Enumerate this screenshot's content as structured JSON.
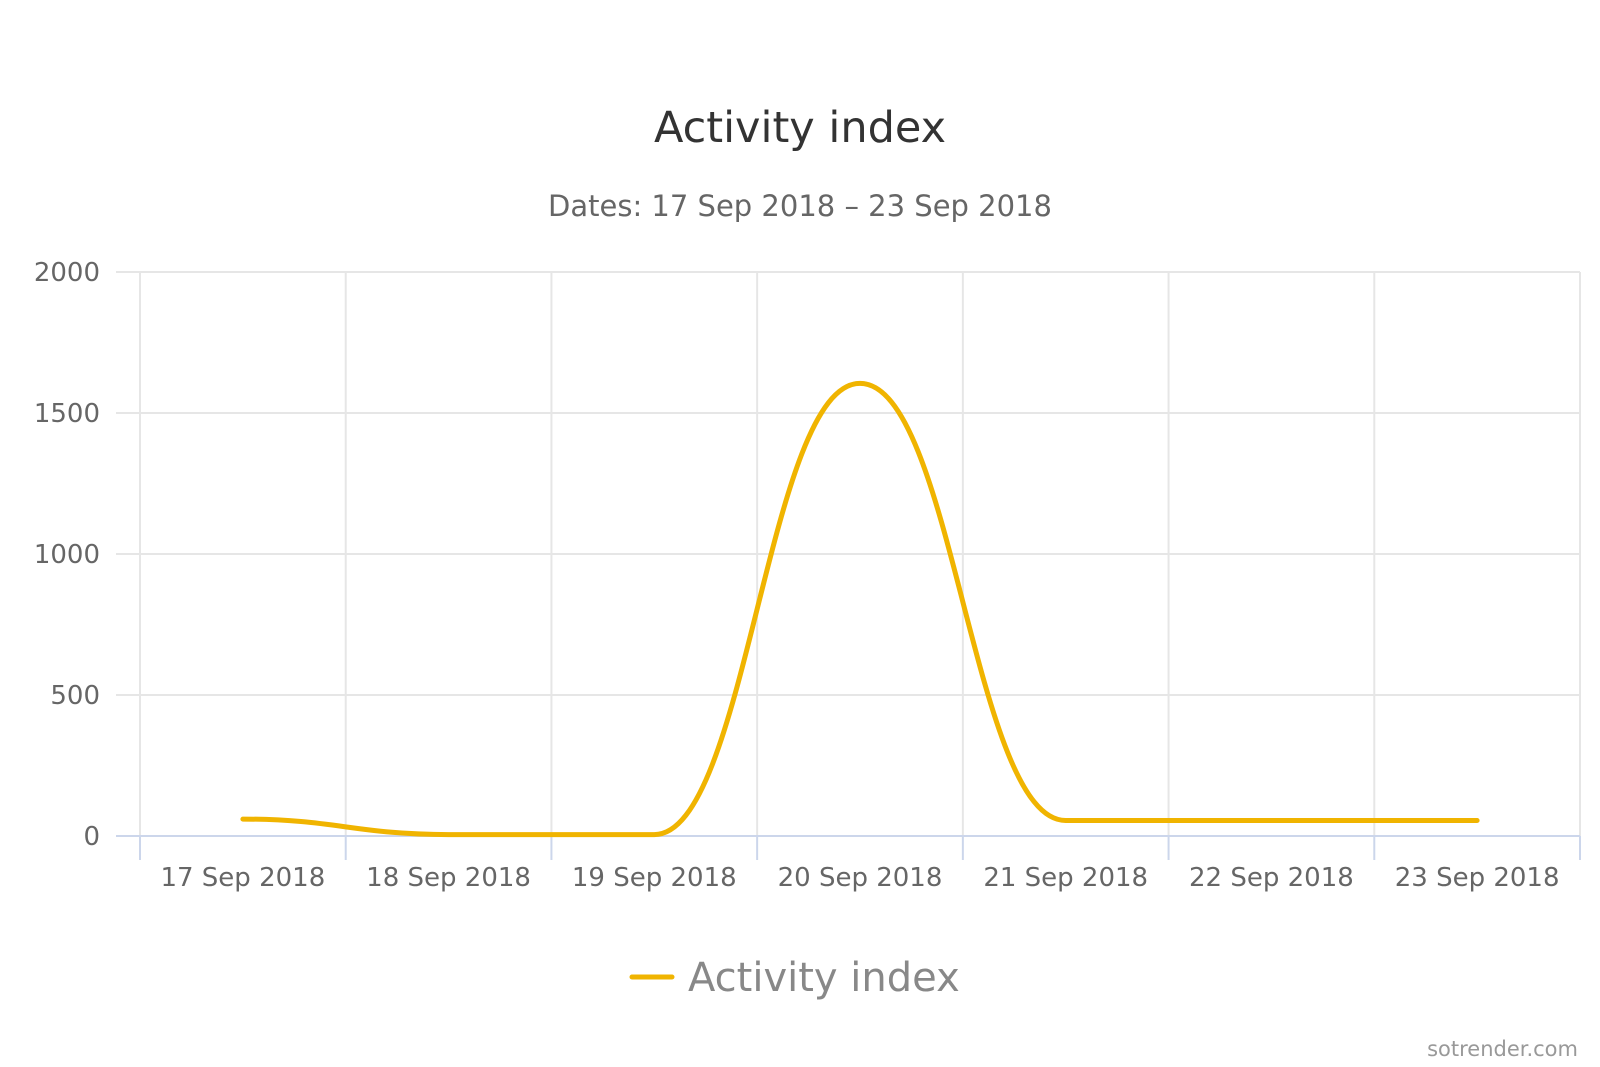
{
  "colors": {
    "series": "#f0b400",
    "grid": "#e6e6e6",
    "axis": "#ccd6eb",
    "text": "#666666"
  },
  "chart_data": {
    "type": "line",
    "title": "Activity index",
    "subtitle": "Dates: 17 Sep 2018 – 23 Sep 2018",
    "xlabel": "",
    "ylabel": "",
    "categories": [
      "17 Sep 2018",
      "18 Sep 2018",
      "19 Sep 2018",
      "20 Sep 2018",
      "21 Sep 2018",
      "22 Sep 2018",
      "23 Sep 2018"
    ],
    "yticks": [
      "0",
      "500",
      "1000",
      "1500",
      "2000"
    ],
    "ylim": [
      0,
      2000
    ],
    "grid": true,
    "legend": "bottom-center",
    "series": [
      {
        "name": "Activity index",
        "values": [
          60,
          5,
          5,
          1605,
          55,
          55,
          55
        ]
      }
    ],
    "credit": "sotrender.com"
  }
}
